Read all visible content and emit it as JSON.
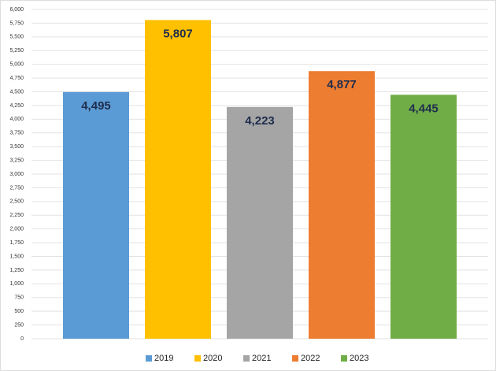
{
  "chart_data": {
    "type": "bar",
    "categories": [
      null
    ],
    "series": [
      {
        "name": "2019",
        "color": "#5b9bd5",
        "values": [
          4495
        ],
        "value_labels": [
          "4,495"
        ]
      },
      {
        "name": "2020",
        "color": "#ffc000",
        "values": [
          5807
        ],
        "value_labels": [
          "5,807"
        ]
      },
      {
        "name": "2021",
        "color": "#a5a5a5",
        "values": [
          4223
        ],
        "value_labels": [
          "4,223"
        ]
      },
      {
        "name": "2022",
        "color": "#ed7d31",
        "values": [
          4877
        ],
        "value_labels": [
          "4,877"
        ]
      },
      {
        "name": "2023",
        "color": "#70ad47",
        "values": [
          4445
        ],
        "value_labels": [
          "4,445"
        ]
      }
    ],
    "ylim": [
      0,
      6000
    ],
    "yticks": [
      0,
      250,
      500,
      750,
      {
        "value": 1000,
        "label": "1,000"
      },
      {
        "value": 1250,
        "label": "1,250"
      },
      {
        "value": 1500,
        "label": "1,500"
      },
      {
        "value": 1750,
        "label": "1,750"
      },
      {
        "value": 2000,
        "label": "2,000"
      },
      {
        "value": 2250,
        "label": "2,250"
      },
      {
        "value": 2500,
        "label": "2,500"
      },
      {
        "value": 2750,
        "label": "2,750"
      },
      {
        "value": 3000,
        "label": "3,000"
      },
      {
        "value": 3250,
        "label": "3,250"
      },
      {
        "value": 3500,
        "label": "3,500"
      },
      {
        "value": 3750,
        "label": "3,750"
      },
      {
        "value": 4000,
        "label": "4,000"
      },
      {
        "value": 4250,
        "label": "4,250"
      },
      {
        "value": 4500,
        "label": "4,500"
      },
      {
        "value": 4750,
        "label": "4,750"
      },
      {
        "value": 5000,
        "label": "5,000"
      },
      {
        "value": 5250,
        "label": "5,250"
      },
      {
        "value": 5500,
        "label": "5,500"
      },
      {
        "value": 5750,
        "label": "5,750"
      },
      {
        "value": 6000,
        "label": "6,000"
      }
    ],
    "grid": true,
    "legend": "bottom"
  }
}
